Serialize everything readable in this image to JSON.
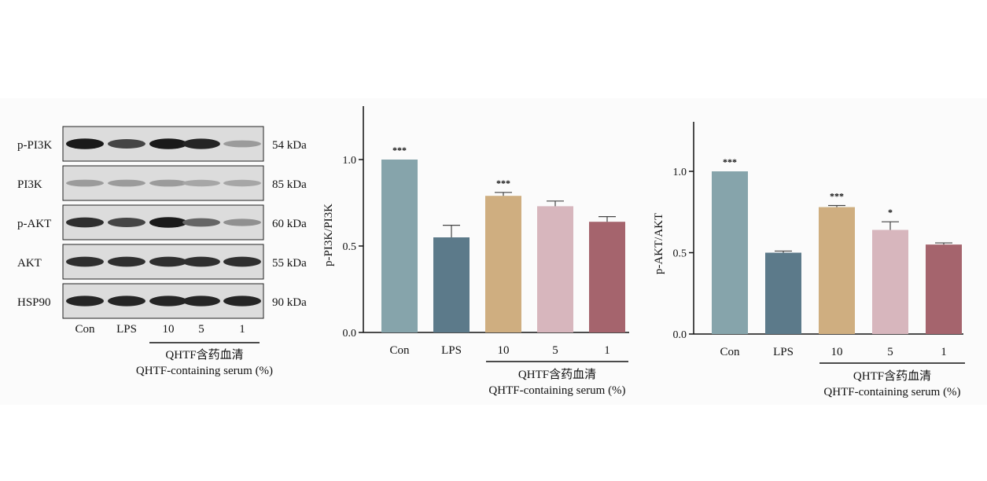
{
  "western_blot": {
    "rows": [
      {
        "label": "p-PI3K",
        "kda": "54 kDa",
        "intensity": [
          0.95,
          0.75,
          0.95,
          0.9,
          0.35
        ]
      },
      {
        "label": "PI3K",
        "kda": "85 kDa",
        "intensity": [
          0.35,
          0.35,
          0.35,
          0.3,
          0.3
        ]
      },
      {
        "label": "p-AKT",
        "kda": "60 kDa",
        "intensity": [
          0.85,
          0.75,
          0.95,
          0.6,
          0.4
        ]
      },
      {
        "label": "AKT",
        "kda": "55 kDa",
        "intensity": [
          0.85,
          0.85,
          0.85,
          0.85,
          0.85
        ]
      },
      {
        "label": "HSP90",
        "kda": "90 kDa",
        "intensity": [
          0.9,
          0.9,
          0.9,
          0.9,
          0.9
        ]
      }
    ],
    "lanes": [
      "Con",
      "LPS",
      "10",
      "5",
      "1"
    ],
    "group_label_cn": "QHTF含药血清",
    "group_label_en": "QHTF-containing serum (%)"
  },
  "chart_data": [
    {
      "type": "bar",
      "ylabel": "p-PI3K/PI3K",
      "ylim": [
        0,
        1.0
      ],
      "yticks": [
        "0.0",
        "0.5",
        "1.0"
      ],
      "categories": [
        "Con",
        "LPS",
        "10",
        "5",
        "1"
      ],
      "values": [
        1.0,
        0.55,
        0.79,
        0.73,
        0.64
      ],
      "errors": [
        0,
        0.07,
        0.02,
        0.03,
        0.03
      ],
      "significance": [
        "***",
        "",
        "***",
        "",
        ""
      ],
      "colors": [
        "#86a4ab",
        "#5c7a8a",
        "#cfae80",
        "#d7b6bd",
        "#a5646d"
      ],
      "group_label_cn": "QHTF含药血清",
      "group_label_en": "QHTF-containing serum (%)"
    },
    {
      "type": "bar",
      "ylabel": "p-AKT/AKT",
      "ylim": [
        0,
        1.0
      ],
      "yticks": [
        "0.0",
        "0.5",
        "1.0"
      ],
      "categories": [
        "Con",
        "LPS",
        "10",
        "5",
        "1"
      ],
      "values": [
        1.0,
        0.5,
        0.78,
        0.64,
        0.55
      ],
      "errors": [
        0,
        0.01,
        0.01,
        0.05,
        0.01
      ],
      "significance": [
        "***",
        "",
        "***",
        "*",
        ""
      ],
      "colors": [
        "#86a4ab",
        "#5c7a8a",
        "#cfae80",
        "#d7b6bd",
        "#a5646d"
      ],
      "group_label_cn": "QHTF含药血清",
      "group_label_en": "QHTF-containing serum (%)"
    }
  ]
}
